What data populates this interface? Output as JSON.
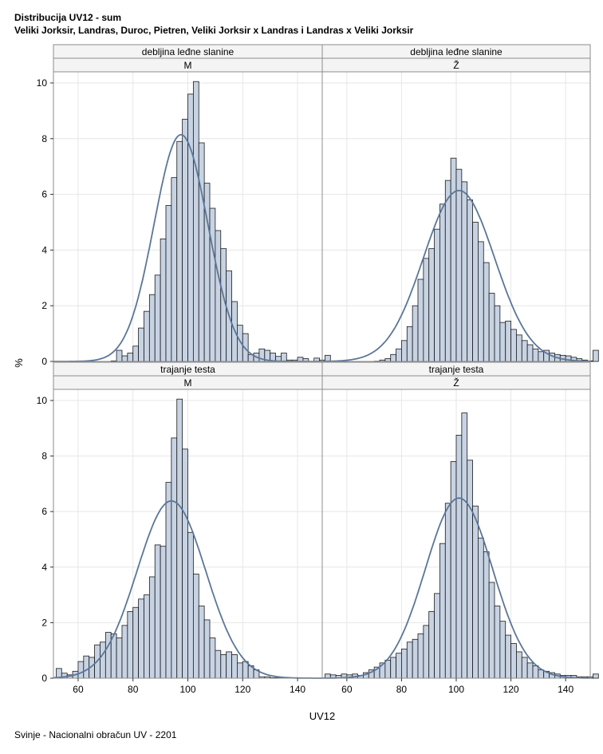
{
  "title": "Distribucija UV12 - sum",
  "subtitle": "Veliki Jorksir, Landras, Duroc, Pietren, Veliki Jorksir x Landras i Landras x Veliki Jorksir",
  "footnote": "Svinje - Nacionalni obračun UV - 2201",
  "colors": {
    "bar_fill": "#c7d3e3",
    "bar_stroke": "#1a1a1a",
    "curve": "#5b7699",
    "grid": "#e6e6e6",
    "frame": "#8c8c8c"
  },
  "chart_data": {
    "type": "bar",
    "layout": "2x2 panel histograms with fitted normal curves",
    "xlabel": "UV12",
    "ylabel": "%",
    "xlim": [
      51,
      149
    ],
    "ylim": [
      0,
      10.4
    ],
    "xticks": [
      60,
      80,
      100,
      120,
      140
    ],
    "yticks": [
      0,
      2,
      4,
      6,
      8,
      10
    ],
    "bin_start": 52,
    "bin_width": 2,
    "grid": true,
    "panels": [
      {
        "row_header": "debljina leđne slanine",
        "col_header": "M",
        "values": [
          0,
          0,
          0,
          0,
          0,
          0,
          0,
          0,
          0,
          0,
          0.02,
          0.4,
          0.2,
          0.3,
          0.55,
          1.2,
          1.8,
          2.4,
          3.1,
          4.4,
          5.6,
          6.6,
          7.9,
          8.7,
          9.6,
          10.05,
          7.85,
          6.4,
          5.5,
          4.7,
          4.05,
          3.25,
          2.15,
          1.3,
          1.0,
          0.25,
          0.3,
          0.45,
          0.4,
          0.3,
          0.18,
          0.3,
          0.05,
          0.05,
          0.15,
          0.1,
          0,
          0.12,
          0.05,
          0.22
        ],
        "normal": {
          "mean": 97.5,
          "sd": 9.8
        }
      },
      {
        "row_header": "debljina leđne slanine",
        "col_header": "Ž",
        "values": [
          0,
          0,
          0,
          0,
          0,
          0,
          0,
          0,
          0,
          0.01,
          0.05,
          0.1,
          0.25,
          0.45,
          0.75,
          1.25,
          2.0,
          2.95,
          3.7,
          4.05,
          4.75,
          5.65,
          6.5,
          7.3,
          6.9,
          6.45,
          5.8,
          5.0,
          4.3,
          3.55,
          2.45,
          2.0,
          1.4,
          1.45,
          1.15,
          0.95,
          0.75,
          0.6,
          0.45,
          0.35,
          0.4,
          0.3,
          0.25,
          0.22,
          0.2,
          0.15,
          0.1,
          0.05,
          0.02,
          0.4
        ],
        "normal": {
          "mean": 101,
          "sd": 13
        }
      },
      {
        "row_header": "trajanje testa",
        "col_header": "M",
        "values": [
          0.35,
          0.18,
          0.12,
          0.25,
          0.6,
          0.8,
          0.75,
          1.2,
          1.3,
          1.65,
          1.6,
          1.45,
          1.9,
          2.4,
          2.55,
          2.85,
          3.0,
          3.65,
          4.8,
          4.75,
          7.05,
          8.65,
          10.05,
          8.25,
          5.25,
          3.75,
          2.6,
          2.1,
          1.45,
          1.0,
          0.85,
          0.95,
          0.85,
          0.55,
          0.6,
          0.45,
          0.3,
          0.05,
          0.05,
          0.02,
          0.02,
          0,
          0,
          0,
          0,
          0,
          0,
          0,
          0,
          0
        ],
        "normal": {
          "mean": 94,
          "sd": 12.5
        }
      },
      {
        "row_header": "trajanje testa",
        "col_header": "Ž",
        "values": [
          0.15,
          0.12,
          0.1,
          0.15,
          0.12,
          0.15,
          0.1,
          0.2,
          0.3,
          0.4,
          0.55,
          0.65,
          0.75,
          0.9,
          1.05,
          1.3,
          1.4,
          1.6,
          1.9,
          2.4,
          3.05,
          4.85,
          6.3,
          7.8,
          8.75,
          9.55,
          7.85,
          6.2,
          5.05,
          4.55,
          3.45,
          2.6,
          2.05,
          1.55,
          1.25,
          0.95,
          0.75,
          0.55,
          0.45,
          0.3,
          0.25,
          0.2,
          0.15,
          0.1,
          0.1,
          0.1,
          0.05,
          0.05,
          0.05,
          0.15
        ],
        "normal": {
          "mean": 101,
          "sd": 12.3
        }
      }
    ]
  }
}
